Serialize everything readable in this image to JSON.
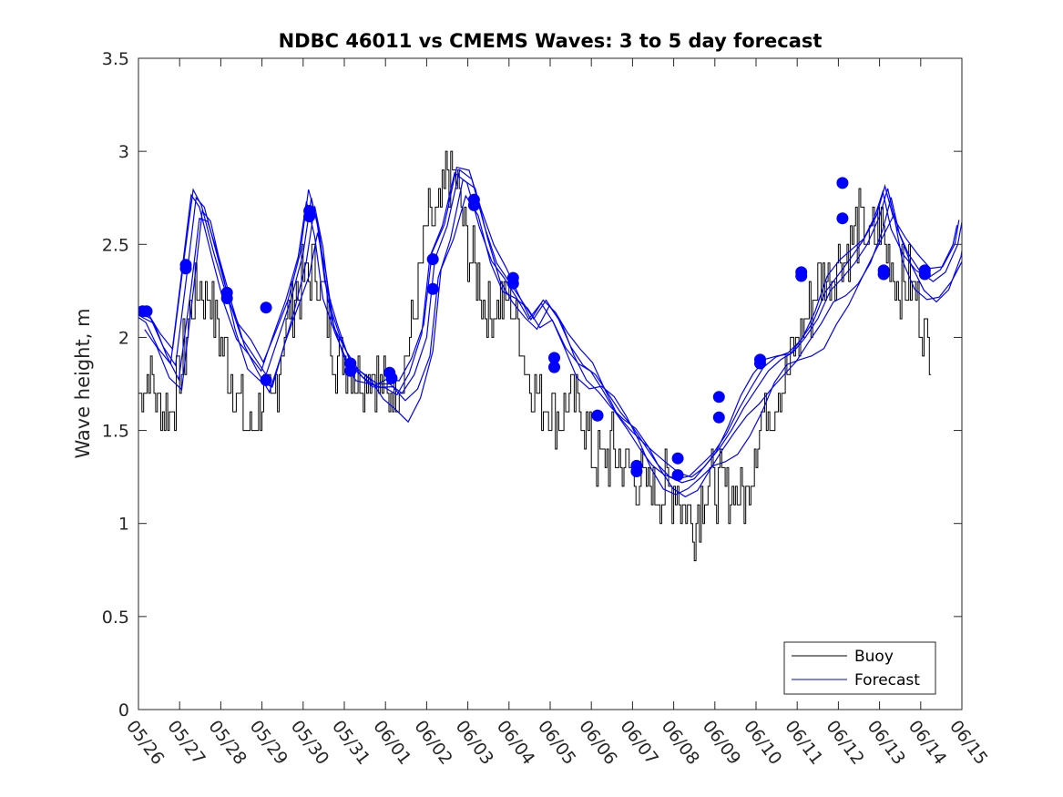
{
  "chart_data": {
    "type": "line",
    "title": "NDBC 46011 vs CMEMS Waves: 3 to 5 day forecast",
    "xlabel": "",
    "ylabel": "Wave height, m",
    "ylim": [
      0,
      3.5
    ],
    "yticks": [
      "0",
      "0.5",
      "1",
      "1.5",
      "2",
      "2.5",
      "3",
      "3.5"
    ],
    "xlim": [
      0,
      20
    ],
    "xticks": [
      "05/26",
      "05/27",
      "05/28",
      "05/29",
      "05/30",
      "05/31",
      "06/01",
      "06/02",
      "06/03",
      "06/04",
      "06/05",
      "06/06",
      "06/07",
      "06/08",
      "06/09",
      "06/10",
      "06/11",
      "06/12",
      "06/13",
      "06/14",
      "06/15"
    ],
    "grid": false,
    "legend_position": "bottom-right",
    "colors": {
      "buoy": "#000000",
      "forecast": "#0000ff",
      "marker": "#0000ff"
    },
    "series": [
      {
        "name": "Buoy",
        "style": "line",
        "x": [
          0,
          0.25,
          0.5,
          0.75,
          1,
          1.25,
          1.5,
          1.75,
          2,
          2.25,
          2.5,
          2.75,
          3,
          3.25,
          3.5,
          3.75,
          4,
          4.25,
          4.5,
          4.75,
          5,
          5.25,
          5.5,
          5.75,
          6,
          6.25,
          6.5,
          6.75,
          7,
          7.25,
          7.5,
          7.75,
          8,
          8.25,
          8.5,
          8.75,
          9,
          9.25,
          9.5,
          9.75,
          10,
          10.25,
          10.5,
          10.75,
          11,
          11.25,
          11.5,
          11.75,
          12,
          12.25,
          12.5,
          12.75,
          13,
          13.25,
          13.5,
          13.75,
          14,
          14.25,
          14.5,
          14.75,
          15,
          15.25,
          15.5,
          15.75,
          16,
          16.25,
          16.5,
          16.75,
          17,
          17.25,
          17.5,
          17.75,
          18,
          18.25,
          18.5,
          18.75,
          19,
          19.25
        ],
        "y": [
          1.7,
          1.8,
          1.6,
          1.6,
          1.8,
          2.1,
          2.3,
          2.2,
          2.0,
          1.8,
          1.6,
          1.5,
          1.7,
          1.6,
          2.0,
          2.2,
          2.3,
          2.4,
          2.2,
          1.9,
          1.9,
          1.8,
          1.8,
          1.8,
          1.7,
          1.7,
          1.9,
          2.2,
          2.6,
          2.6,
          2.9,
          2.8,
          2.5,
          2.3,
          2.1,
          2.2,
          2.2,
          2.0,
          1.8,
          1.7,
          1.6,
          1.6,
          1.7,
          1.6,
          1.4,
          1.3,
          1.4,
          1.3,
          1.3,
          1.2,
          1.2,
          1.2,
          1.2,
          1.1,
          1.0,
          1.2,
          1.2,
          1.2,
          1.2,
          1.1,
          1.5,
          1.6,
          1.7,
          1.8,
          2.0,
          2.1,
          2.3,
          2.3,
          2.4,
          2.5,
          2.6,
          2.5,
          2.6,
          2.4,
          2.3,
          2.3,
          2.1,
          1.9
        ]
      },
      {
        "name": "Forecast",
        "style": "line",
        "x": [
          0,
          0.3,
          0.6,
          0.9,
          1.2,
          1.4,
          1.6,
          1.9,
          2.2,
          2.5,
          2.8,
          3.1,
          3.4,
          3.7,
          4.0,
          4.2,
          4.4,
          4.6,
          4.9,
          5.2,
          5.5,
          5.8,
          6.1,
          6.4,
          6.7,
          7.0,
          7.2,
          7.5,
          7.8,
          8.1,
          8.4,
          8.7,
          9.0,
          9.3,
          9.6,
          9.9,
          10.2,
          10.5,
          10.8,
          11.1,
          11.4,
          11.7,
          12.0,
          12.3,
          12.6,
          12.9,
          13.2,
          13.5,
          13.8,
          14.1,
          14.4,
          14.7,
          15.0,
          15.3,
          15.6,
          15.9,
          16.2,
          16.5,
          16.8,
          17.1,
          17.4,
          17.7,
          18.0,
          18.2,
          18.4,
          18.7,
          19.0,
          19.3,
          19.6,
          19.9,
          20.0
        ],
        "y": [
          2.14,
          2.1,
          1.95,
          1.85,
          2.38,
          2.75,
          2.7,
          2.45,
          2.2,
          2.0,
          1.9,
          1.8,
          2.0,
          2.2,
          2.45,
          2.75,
          2.55,
          2.2,
          2.0,
          1.85,
          1.8,
          1.75,
          1.75,
          1.7,
          1.8,
          2.0,
          2.42,
          2.6,
          2.9,
          2.85,
          2.6,
          2.4,
          2.3,
          2.2,
          2.1,
          2.2,
          2.1,
          1.95,
          1.85,
          1.8,
          1.7,
          1.6,
          1.52,
          1.42,
          1.32,
          1.25,
          1.22,
          1.24,
          1.32,
          1.4,
          1.5,
          1.62,
          1.72,
          1.82,
          1.88,
          1.92,
          2.0,
          2.1,
          2.25,
          2.32,
          2.4,
          2.5,
          2.65,
          2.8,
          2.6,
          2.45,
          2.35,
          2.3,
          2.35,
          2.5,
          2.62
        ]
      }
    ],
    "forecast_markers": {
      "x": [
        0.1,
        0.2,
        1.15,
        1.15,
        2.15,
        2.15,
        3.1,
        3.1,
        4.15,
        4.15,
        5.15,
        5.15,
        6.1,
        6.15,
        7.15,
        7.15,
        8.15,
        8.15,
        9.1,
        9.1,
        10.1,
        10.1,
        11.15,
        11.15,
        12.1,
        12.1,
        13.1,
        13.1,
        14.1,
        14.1,
        15.1,
        15.1,
        16.1,
        16.1,
        17.1,
        17.1,
        18.1,
        18.1,
        19.1,
        19.1
      ],
      "y": [
        2.14,
        2.14,
        2.39,
        2.37,
        2.24,
        2.21,
        1.77,
        2.16,
        2.68,
        2.65,
        1.86,
        1.82,
        1.81,
        1.78,
        2.42,
        2.26,
        2.74,
        2.71,
        2.32,
        2.29,
        1.89,
        1.84,
        1.58,
        1.58,
        1.31,
        1.28,
        1.35,
        1.26,
        1.68,
        1.57,
        1.88,
        1.86,
        2.35,
        2.33,
        2.83,
        2.64,
        2.36,
        2.34,
        2.36,
        2.34
      ]
    }
  }
}
